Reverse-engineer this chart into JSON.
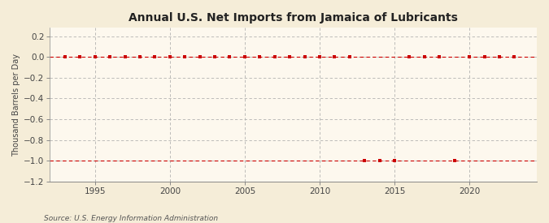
{
  "title": "Annual U.S. Net Imports from Jamaica of Lubricants",
  "ylabel": "Thousand Barrels per Day",
  "source": "Source: U.S. Energy Information Administration",
  "background_color": "#f5edd8",
  "plot_background_color": "#fdf8ee",
  "marker_color": "#cc0000",
  "dash_color": "#cc0000",
  "xlim": [
    1992,
    2024.5
  ],
  "ylim": [
    -1.2,
    0.28
  ],
  "yticks": [
    0.2,
    0.0,
    -0.2,
    -0.4,
    -0.6,
    -0.8,
    -1.0,
    -1.2
  ],
  "xticks": [
    1995,
    2000,
    2005,
    2010,
    2015,
    2020
  ],
  "grid_color": "#aaaaaa",
  "years": [
    1993,
    1994,
    1995,
    1996,
    1997,
    1998,
    1999,
    2000,
    2001,
    2002,
    2003,
    2004,
    2005,
    2006,
    2007,
    2008,
    2009,
    2010,
    2011,
    2012,
    2013,
    2014,
    2015,
    2016,
    2017,
    2018,
    2019,
    2020,
    2021,
    2022,
    2023
  ],
  "values": [
    0,
    0,
    0,
    0,
    0,
    0,
    0,
    0,
    0,
    0,
    0,
    0,
    0,
    0,
    0,
    0,
    0,
    0,
    0,
    0,
    -1,
    -1,
    -1,
    0,
    0,
    0,
    -1,
    0,
    0,
    0,
    0
  ]
}
